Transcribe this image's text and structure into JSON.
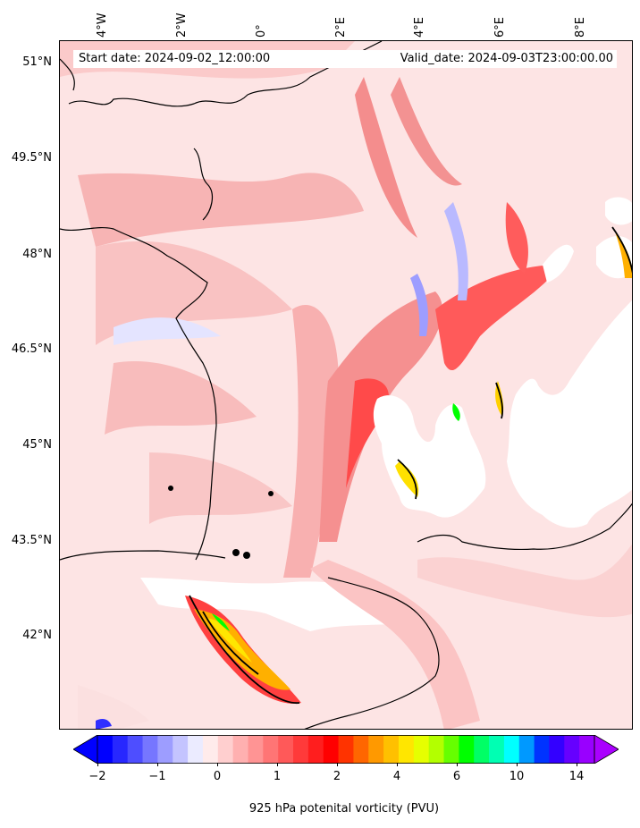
{
  "header": {
    "start_date": "Start date: 2024-09-02_12:00:00",
    "valid_date": "Valid_date: 2024-09-03T23:00:00.00"
  },
  "longitude_labels": [
    "4°W",
    "2°W",
    "0°",
    "2°E",
    "4°E",
    "6°E",
    "8°E"
  ],
  "latitude_labels": [
    "51°N",
    "49.5°N",
    "48°N",
    "46.5°N",
    "45°N",
    "43.5°N",
    "42°N"
  ],
  "colorbar": {
    "title": "925 hPa potenital vorticity (PVU)",
    "tick_labels": [
      "−2",
      "−1",
      "0",
      "1",
      "2",
      "4",
      "6",
      "10",
      "14"
    ],
    "colors": [
      "#0000ff",
      "#2727ff",
      "#4e4eff",
      "#7676ff",
      "#9d9dff",
      "#c4c4ff",
      "#ebebff",
      "#ffebeb",
      "#ffcfcf",
      "#ffb0b0",
      "#ff9494",
      "#ff7575",
      "#ff5959",
      "#ff3a3a",
      "#ff1e1e",
      "#ff0000",
      "#ff3300",
      "#ff6600",
      "#ff9900",
      "#ffc000",
      "#ffe600",
      "#e6ff00",
      "#b3ff00",
      "#66ff00",
      "#00ff00",
      "#00ff66",
      "#00ffb3",
      "#00ffff",
      "#0099ff",
      "#0033ff",
      "#3300ff",
      "#6600ff",
      "#9900ff"
    ],
    "under_color": "#0000ff",
    "over_color": "#aa00ff"
  }
}
